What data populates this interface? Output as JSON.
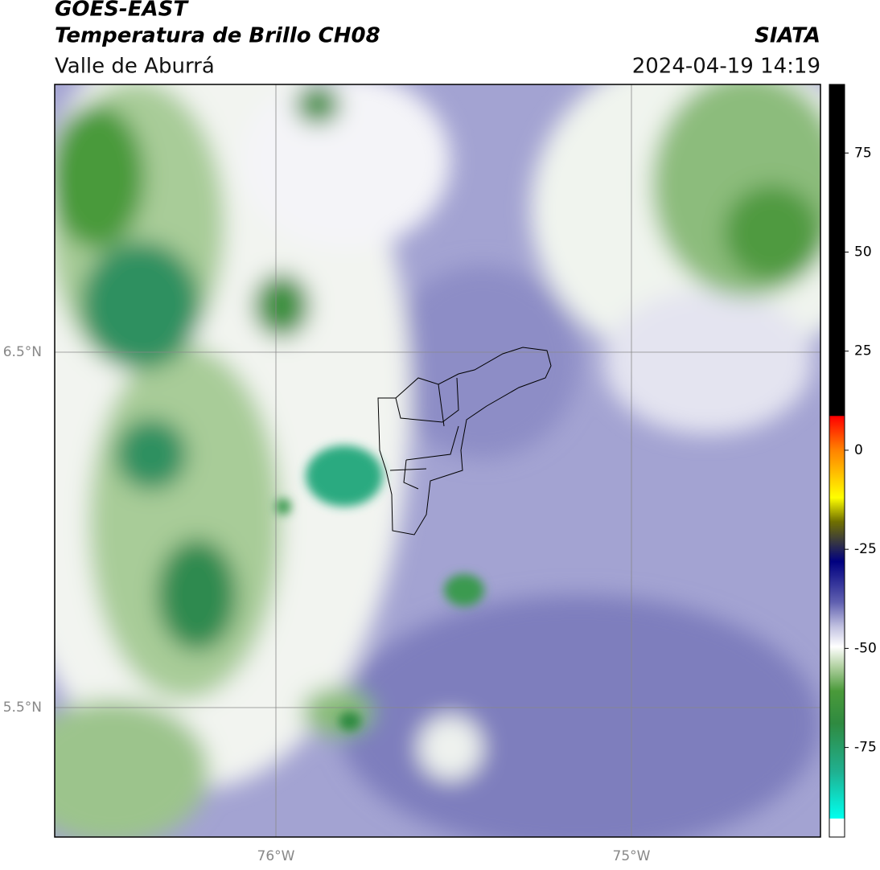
{
  "header": {
    "title1": "GOES-EAST",
    "title2": "Temperatura de Brillo CH08",
    "subtitle": "Valle de Aburrá",
    "source": "SIATA",
    "datetime": "2024-04-19 14:19"
  },
  "map": {
    "lat_labels": [
      "6.5°N",
      "5.5°N"
    ],
    "lon_labels": [
      "76°W",
      "75°W"
    ]
  },
  "colorbar": {
    "lim": [
      -97.6,
      92.3
    ],
    "ticks": [
      75,
      50,
      25,
      0,
      -25,
      -50,
      -75
    ]
  }
}
